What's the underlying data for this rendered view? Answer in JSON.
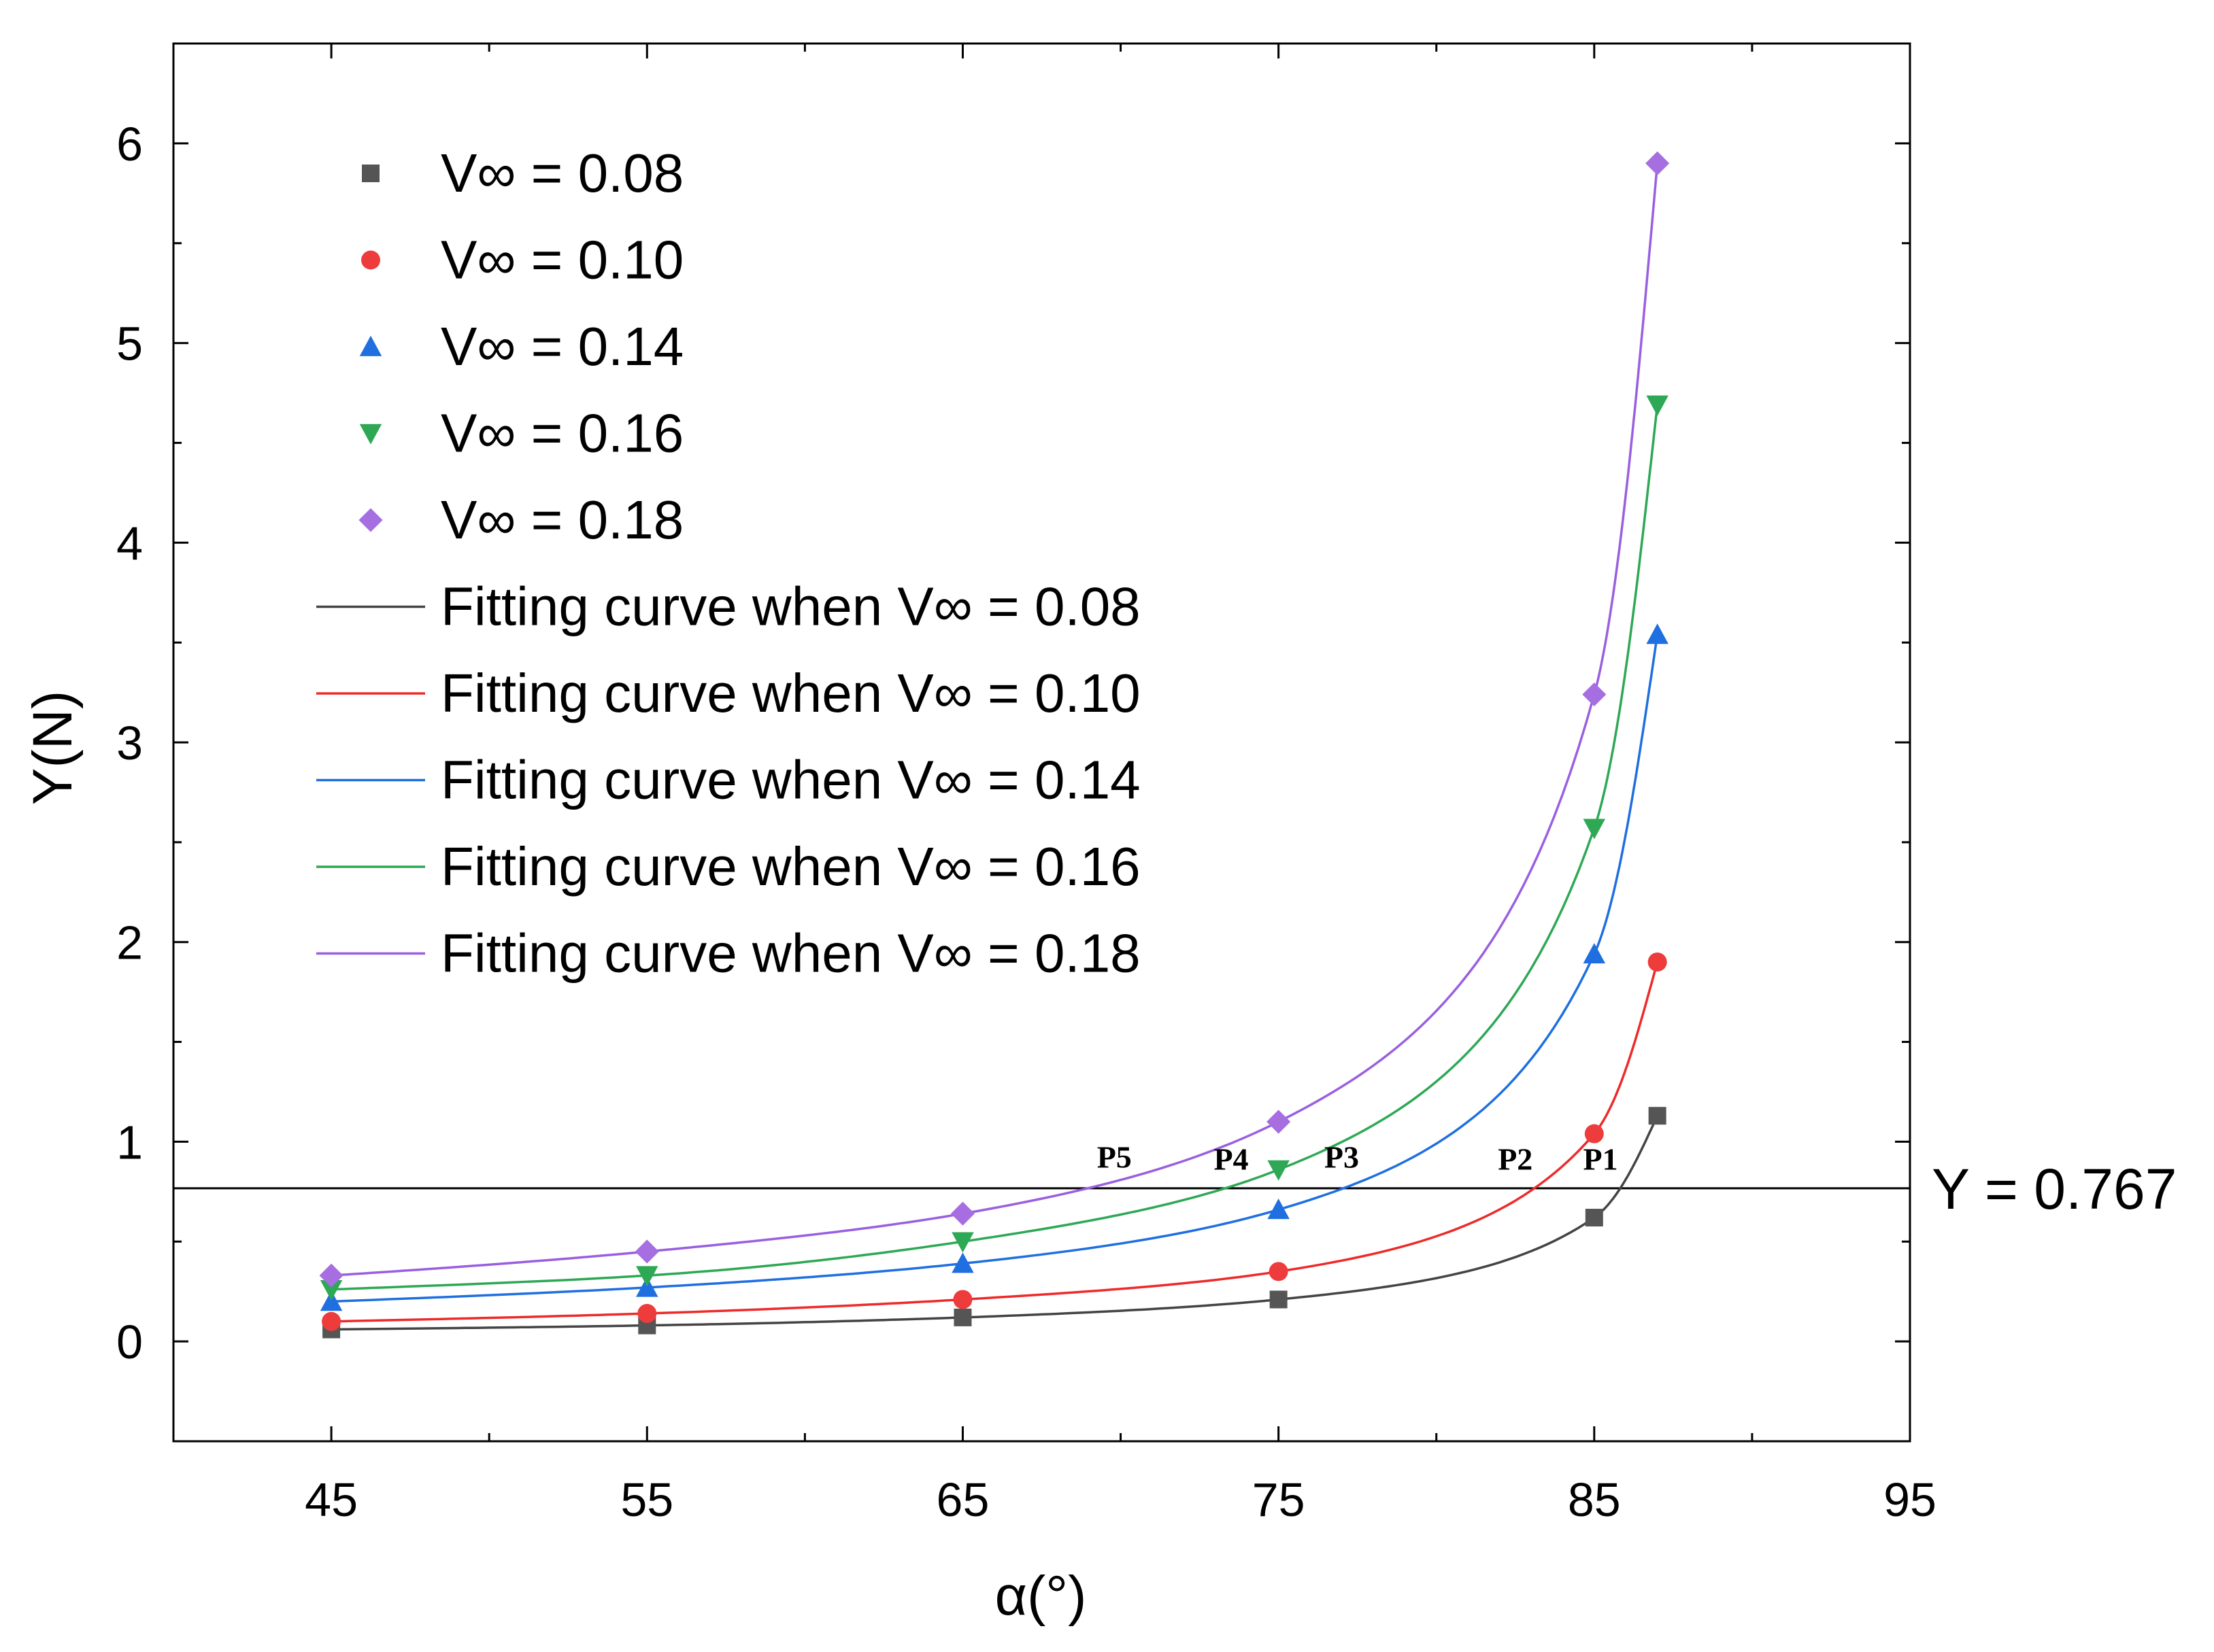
{
  "chart_data": {
    "type": "scatter",
    "xlabel": "α(°)",
    "ylabel": "Y(N)",
    "xlim": [
      40,
      95
    ],
    "ylim": [
      -0.5,
      6.5
    ],
    "xticks": [
      45,
      55,
      65,
      75,
      85,
      95
    ],
    "xtick_labels": [
      "45",
      "55",
      "65",
      "75",
      "85",
      "95"
    ],
    "yticks": [
      0,
      1,
      2,
      3,
      4,
      5,
      6
    ],
    "ytick_labels": [
      "0",
      "1",
      "2",
      "3",
      "4",
      "5",
      "6"
    ],
    "x": [
      45,
      55,
      65,
      75,
      85,
      87
    ],
    "series": [
      {
        "name": "V∞ = 0.08",
        "fit_name": "Fitting curve when V∞ = 0.08",
        "marker": "square",
        "color": "#555555",
        "line_color": "#444444",
        "values": [
          0.06,
          0.08,
          0.12,
          0.21,
          0.62,
          1.13
        ]
      },
      {
        "name": "V∞ = 0.10",
        "fit_name": "Fitting curve when V∞ = 0.10",
        "marker": "circle",
        "color": "#ee3b3b",
        "line_color": "#ee2a2a",
        "values": [
          0.1,
          0.14,
          0.21,
          0.35,
          1.04,
          1.9
        ]
      },
      {
        "name": "V∞ = 0.14",
        "fit_name": "Fitting curve when V∞ = 0.14",
        "marker": "triangle-up",
        "color": "#1f6fe0",
        "line_color": "#1f6fe0",
        "values": [
          0.2,
          0.27,
          0.39,
          0.66,
          1.94,
          3.54
        ]
      },
      {
        "name": "V∞ = 0.16",
        "fit_name": "Fitting curve when V∞ = 0.16",
        "marker": "triangle-down",
        "color": "#2ea855",
        "line_color": "#2ea855",
        "values": [
          0.26,
          0.33,
          0.5,
          0.86,
          2.57,
          4.69
        ]
      },
      {
        "name": "V∞ = 0.18",
        "fit_name": "Fitting curve when V∞ = 0.18",
        "marker": "diamond",
        "color": "#a66ee0",
        "line_color": "#9a5fe0",
        "values": [
          0.33,
          0.45,
          0.64,
          1.1,
          3.24,
          5.9
        ]
      }
    ],
    "reference_line": {
      "y": 0.767,
      "label": "Y = 0.767",
      "color": "#000000"
    },
    "annotations": [
      {
        "text": "P5",
        "x": 69.8,
        "y": 0.87
      },
      {
        "text": "P4",
        "x": 73.5,
        "y": 0.86
      },
      {
        "text": "P3",
        "x": 77.0,
        "y": 0.87
      },
      {
        "text": "P2",
        "x": 82.5,
        "y": 0.86
      },
      {
        "text": "P1",
        "x": 85.2,
        "y": 0.86
      }
    ],
    "legend_position": "top-left"
  }
}
